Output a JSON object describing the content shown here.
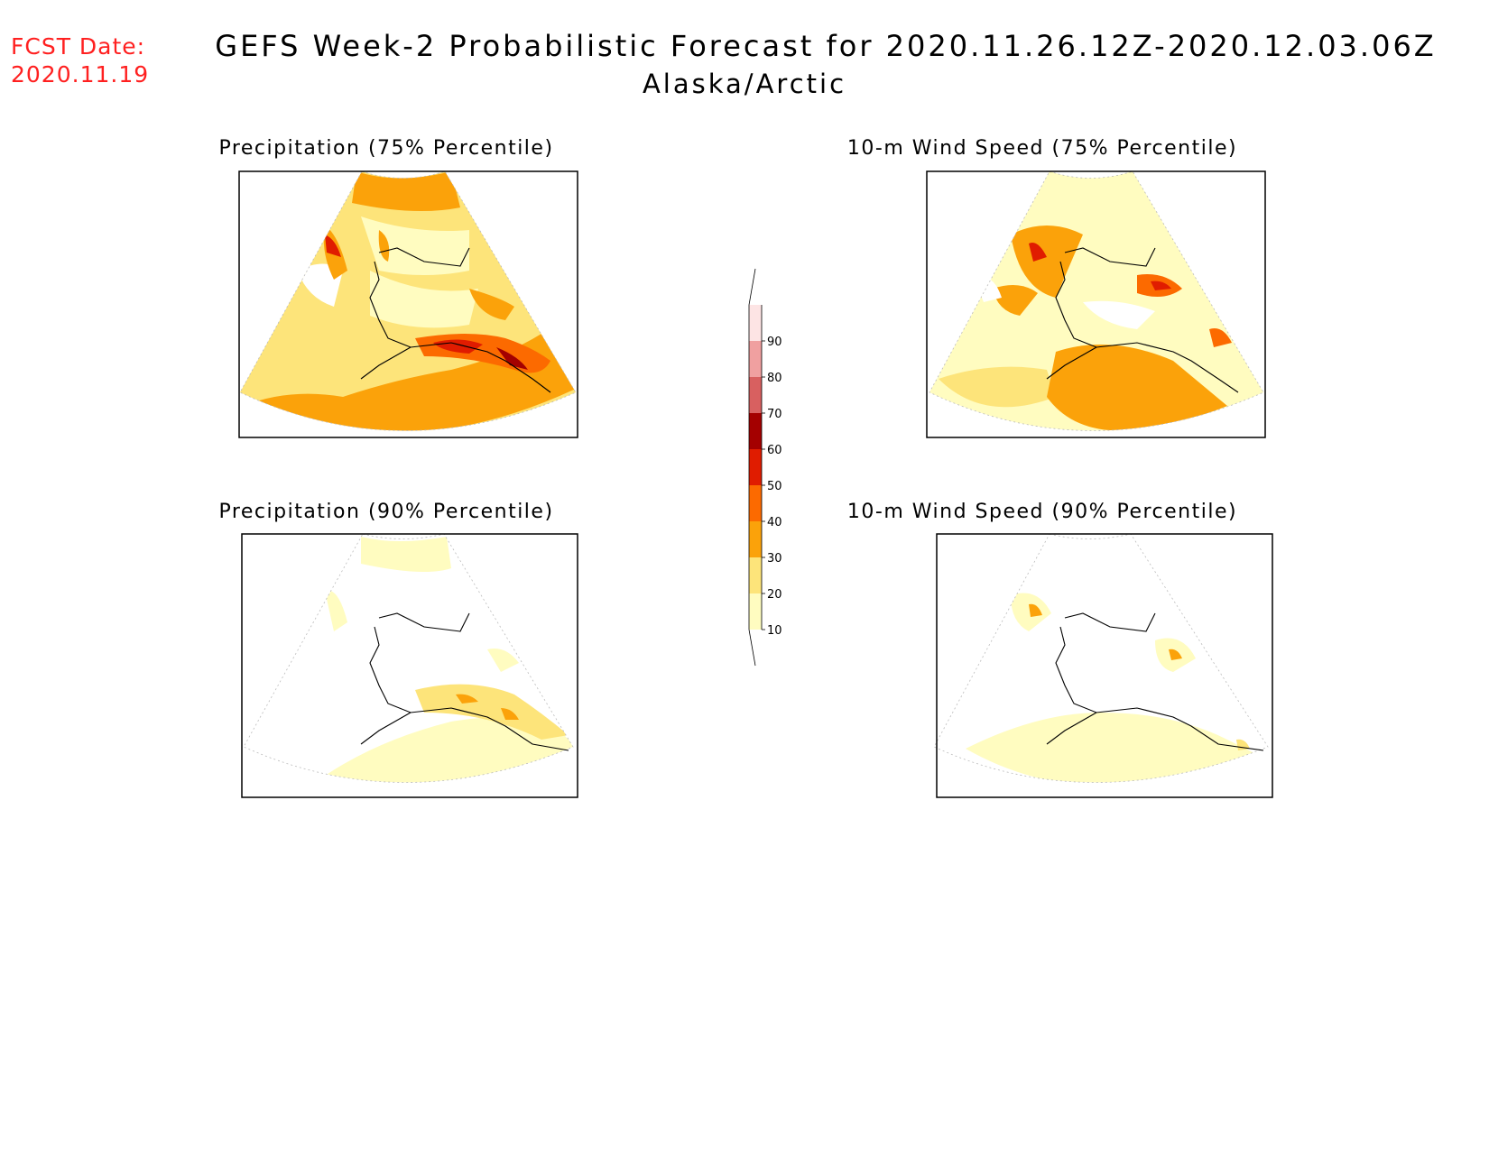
{
  "forecast_date": {
    "label": "FCST Date:",
    "value": "2020.11.19"
  },
  "title": {
    "line1": "GEFS Week-2 Probabilistic Forecast for 2020.11.26.12Z-2020.12.03.06Z",
    "line2": "Alaska/Arctic"
  },
  "panels": [
    {
      "id": "precip-75",
      "title": "Precipitation (75% Percentile)"
    },
    {
      "id": "wind-75",
      "title": "10-m Wind Speed (75% Percentile)"
    },
    {
      "id": "precip-90",
      "title": "Precipitation (90% Percentile)"
    },
    {
      "id": "wind-90",
      "title": "10-m Wind Speed (90% Percentile)"
    }
  ],
  "colorbar": {
    "levels": [
      "10",
      "20",
      "30",
      "40",
      "50",
      "60",
      "70",
      "80",
      "90"
    ],
    "colors": [
      "#fffcc0",
      "#fde47a",
      "#fba20a",
      "#fc6a00",
      "#e01c00",
      "#a40000",
      "#d86060",
      "#f0a0a0",
      "#fde4e4"
    ]
  }
}
